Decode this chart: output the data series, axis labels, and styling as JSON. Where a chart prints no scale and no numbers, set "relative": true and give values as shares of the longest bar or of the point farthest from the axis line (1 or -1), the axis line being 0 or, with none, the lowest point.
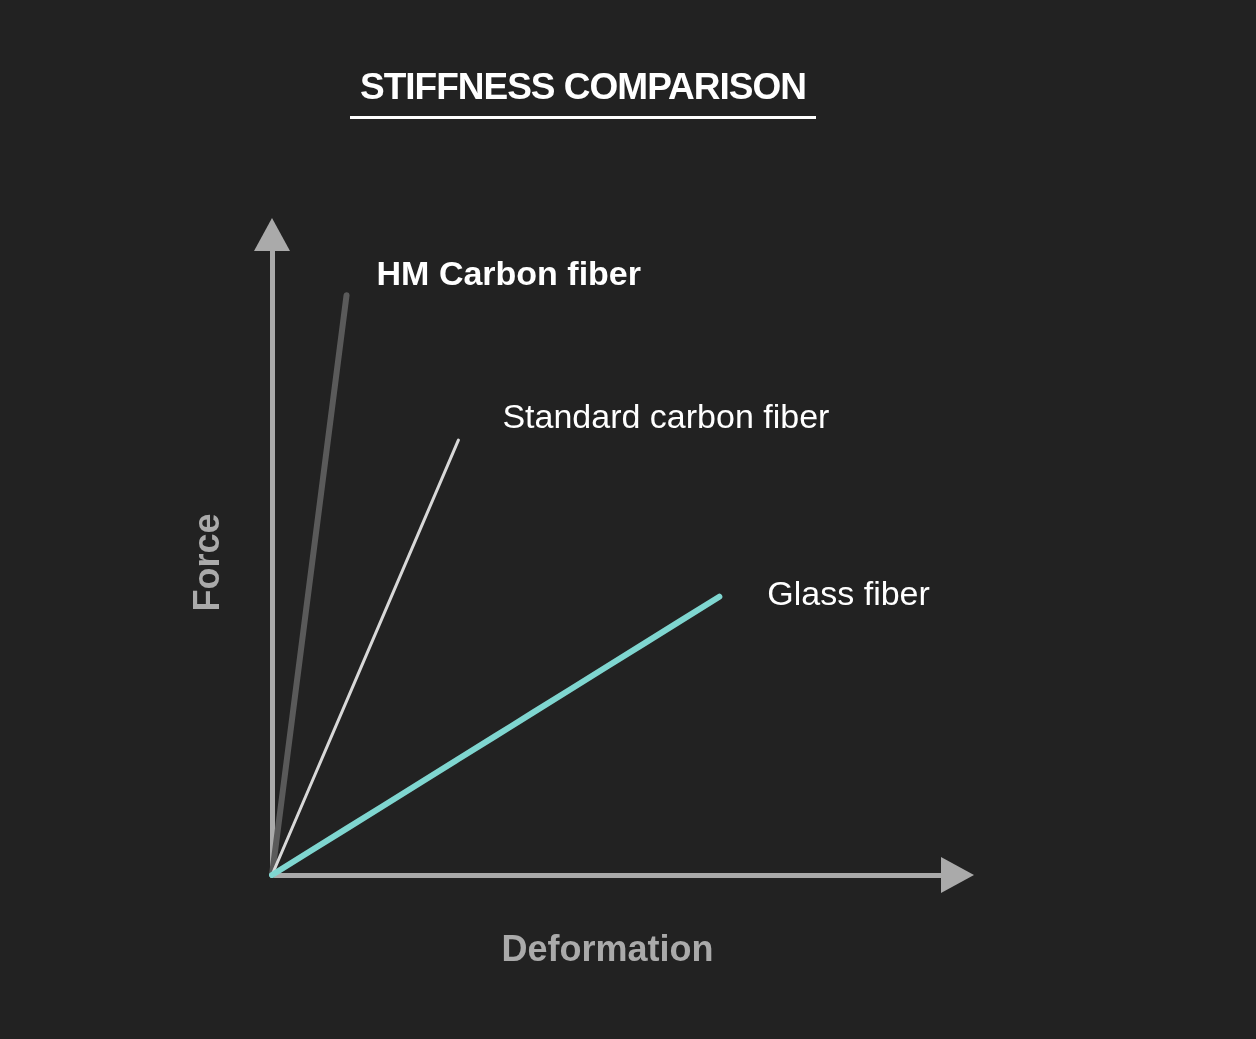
{
  "chart_data": {
    "type": "line",
    "title": "STIFFNESS COMPARISON",
    "xlabel": "Deformation",
    "ylabel": "Force",
    "relative": true,
    "tick_labels": false,
    "marker": "none",
    "categories": [
      null,
      null,
      null,
      null,
      null,
      null,
      null,
      null,
      null,
      null,
      null,
      null,
      null,
      null,
      null,
      null,
      null,
      null,
      null
    ],
    "series": [
      {
        "name": "HM Carbon fiber",
        "color": "#5a5a5a",
        "values": [
          0,
          0.5,
          1,
          null,
          null,
          null,
          null,
          null,
          null,
          null,
          null,
          null,
          null,
          null,
          null,
          null,
          null,
          null,
          null
        ]
      },
      {
        "name": "Standard carbon fiber",
        "color": "#d8d8d8",
        "values": [
          0,
          0.15,
          0.3,
          0.45,
          0.6,
          0.75,
          null,
          null,
          null,
          null,
          null,
          null,
          null,
          null,
          null,
          null,
          null,
          null,
          null
        ]
      },
      {
        "name": "Glass fiber",
        "color": "#7fd6d0",
        "values": [
          0,
          0.04,
          0.08,
          0.12,
          0.16,
          0.2,
          0.24,
          0.28,
          0.32,
          0.36,
          0.4,
          0.44,
          0.48,
          null,
          null,
          null,
          null,
          null,
          null
        ]
      }
    ]
  }
}
